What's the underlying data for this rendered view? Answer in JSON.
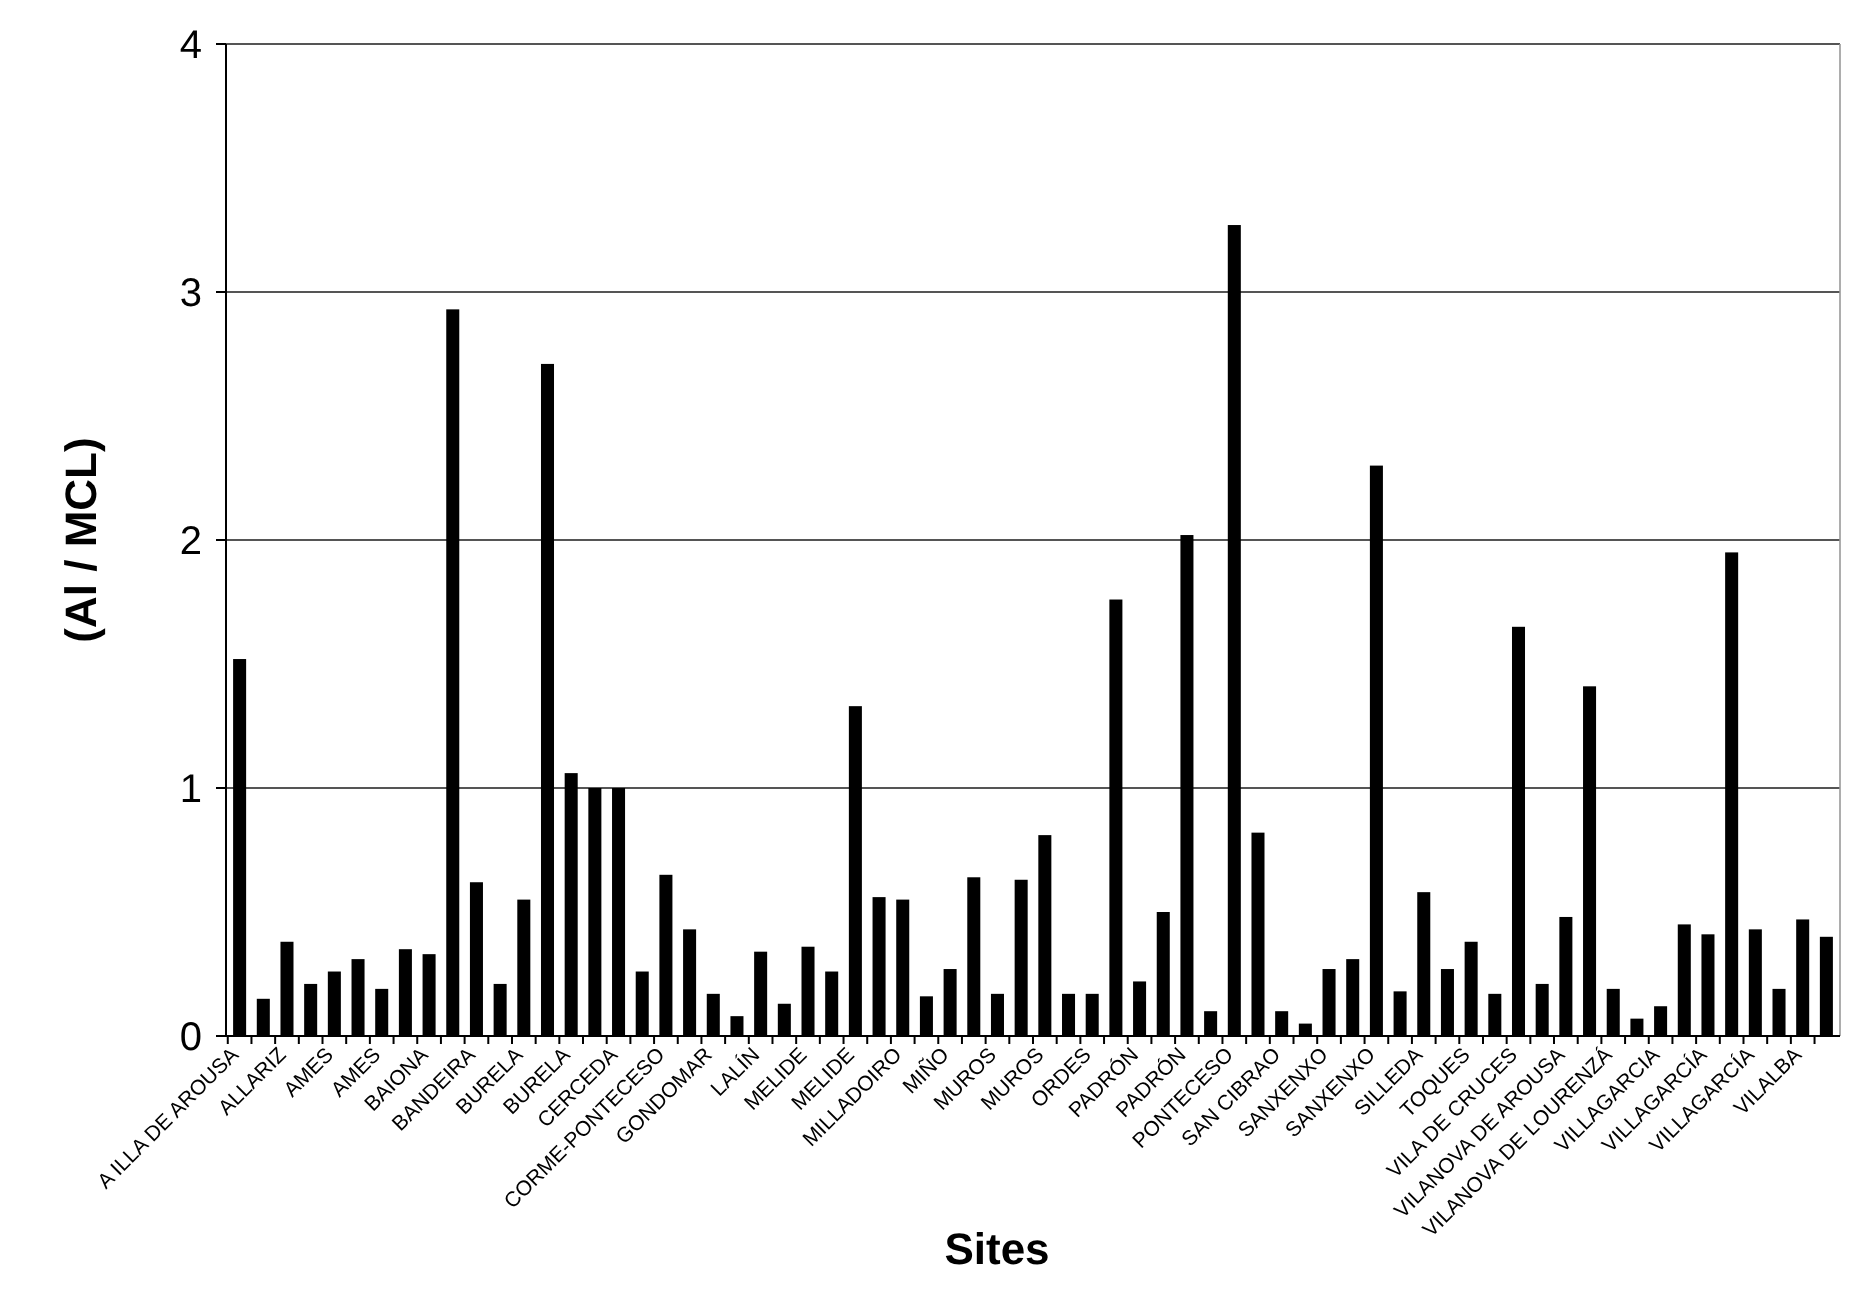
{
  "chart_data": {
    "type": "bar",
    "xlabel": "Sites",
    "ylabel": "(Al / MCL)",
    "categories": [
      "A ILLA DE AROUSA",
      null,
      "ALLARIZ",
      null,
      "AMES",
      null,
      "AMES",
      null,
      "BAIONA",
      null,
      "BANDEIRA",
      null,
      "BURELA",
      null,
      "BURELA",
      null,
      "CERCEDA",
      null,
      "CORME-PONTECESO",
      null,
      "GONDOMAR",
      null,
      "LALÍN",
      null,
      "MELIDE",
      null,
      "MELIDE",
      null,
      "MILLADOIRO",
      null,
      "MIÑO",
      null,
      "MUROS",
      null,
      "MUROS",
      null,
      "ORDES",
      null,
      "PADRÓN",
      null,
      "PADRÓN",
      null,
      "PONTECESO",
      null,
      "SAN CIBRAO",
      null,
      "SANXENXO",
      null,
      "SANXENXO",
      null,
      "SILLEDA",
      null,
      "TOQUES",
      null,
      "VILA DE CRUCES",
      null,
      "VILANOVA DE AROUSA",
      null,
      "VILANOVA DE LOURENZÁ",
      null,
      "VILLAGARCIA",
      null,
      "VILLAGARCÍA",
      null,
      "VILLAGARCÍA",
      null,
      "VILALBA",
      null
    ],
    "values": [
      1.52,
      0.15,
      0.38,
      0.21,
      0.26,
      0.31,
      0.19,
      0.35,
      0.33,
      2.93,
      0.62,
      0.21,
      0.55,
      2.71,
      1.06,
      1.0,
      1.0,
      0.26,
      0.65,
      0.43,
      0.17,
      0.08,
      0.34,
      0.13,
      0.36,
      0.26,
      1.33,
      0.56,
      0.55,
      0.16,
      0.27,
      0.64,
      0.17,
      0.63,
      0.81,
      0.17,
      0.17,
      1.76,
      0.22,
      0.5,
      2.02,
      0.1,
      3.27,
      0.82,
      0.1,
      0.05,
      0.27,
      0.31,
      2.3,
      0.18,
      0.58,
      0.27,
      0.38,
      0.17,
      1.65,
      0.21,
      0.48,
      1.41,
      0.19,
      0.07,
      0.12,
      0.45,
      0.41,
      1.95,
      0.43,
      0.19,
      0.47,
      0.4
    ],
    "color": "#000000",
    "ylim": [
      0,
      4
    ],
    "yticks": [
      0,
      1,
      2,
      3,
      4
    ],
    "grid": "y"
  }
}
